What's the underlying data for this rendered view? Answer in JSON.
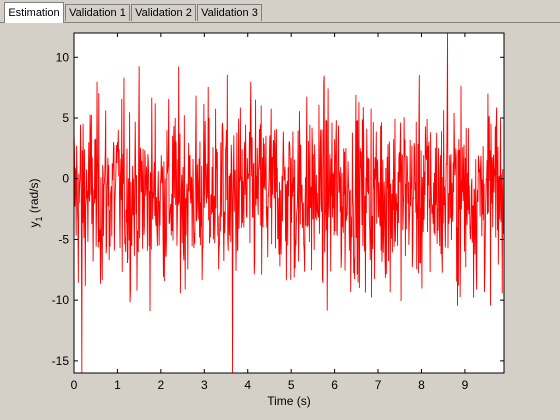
{
  "tabs": [
    {
      "label": "Estimation",
      "active": true
    },
    {
      "label": "Validation 1",
      "active": false
    },
    {
      "label": "Validation 2",
      "active": false
    },
    {
      "label": "Validation 3",
      "active": false
    }
  ],
  "chart_data": {
    "type": "line",
    "xlabel": "Time (s)",
    "ylabel_main": "y",
    "ylabel_sub": "1",
    "ylabel_unit": " (rad/s)",
    "xlim": [
      0,
      9.9
    ],
    "ylim": [
      -16,
      12
    ],
    "xticks": [
      0,
      1,
      2,
      3,
      4,
      5,
      6,
      7,
      8,
      9
    ],
    "yticks": [
      -15,
      -10,
      -5,
      0,
      5,
      10
    ],
    "series": [
      {
        "color": "#ff0000",
        "sample_interval": 0.01,
        "n_samples": 990,
        "mean": -1.2,
        "std": 3.8,
        "min": -16,
        "max": 12,
        "notable_extremes": [
          {
            "x": 3.65,
            "y": -16
          },
          {
            "x": 8.6,
            "y": 12
          },
          {
            "x": 0.18,
            "y": -16
          }
        ]
      }
    ],
    "grid": false
  }
}
